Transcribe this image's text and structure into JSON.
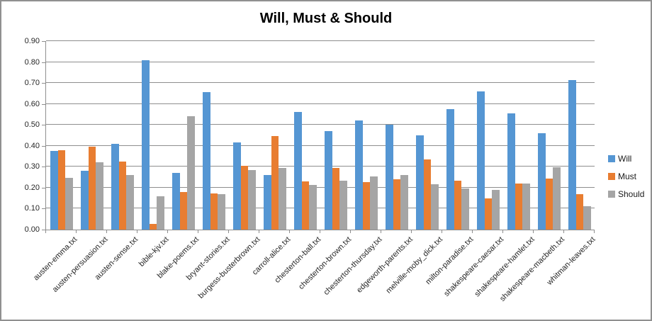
{
  "window": {
    "background": "#ffffff",
    "border_color": "#909090"
  },
  "chart_data": {
    "type": "bar",
    "title": "Will, Must & Should",
    "xlabel": "",
    "ylabel": "",
    "ylim": [
      0,
      0.9
    ],
    "ytick_step": 0.1,
    "yticks": [
      "0.00",
      "0.10",
      "0.20",
      "0.30",
      "0.40",
      "0.50",
      "0.60",
      "0.70",
      "0.80",
      "0.90"
    ],
    "grid": true,
    "gridline_color": "#8e8e8e",
    "legend_position": "right",
    "categories": [
      "austen-emma.txt",
      "austen-persuasion.txt",
      "austen-sense.txt",
      "bible-kjv.txt",
      "blake-poems.txt",
      "bryant-stories.txt",
      "burgess-busterbrown.txt",
      "carroll-alice.txt",
      "chesterton-ball.txt",
      "chesterton-brown.txt",
      "chesterton-thursday.txt",
      "edgeworth-parents.txt",
      "melville-moby_dick.txt",
      "milton-paradise.txt",
      "shakespeare-caesar.txt",
      "shakespeare-hamlet.txt",
      "shakespeare-macbeth.txt",
      "whitman-leaves.txt"
    ],
    "series": [
      {
        "name": "Will",
        "color": "#5596d3",
        "values": [
          0.375,
          0.28,
          0.41,
          0.81,
          0.27,
          0.655,
          0.415,
          0.26,
          0.56,
          0.47,
          0.52,
          0.5,
          0.45,
          0.575,
          0.66,
          0.555,
          0.46,
          0.715
        ]
      },
      {
        "name": "Must",
        "color": "#e87d31",
        "values": [
          0.38,
          0.395,
          0.325,
          0.027,
          0.18,
          0.172,
          0.305,
          0.445,
          0.23,
          0.295,
          0.225,
          0.24,
          0.335,
          0.235,
          0.15,
          0.22,
          0.245,
          0.17
        ]
      },
      {
        "name": "Should",
        "color": "#a5a5a5",
        "values": [
          0.247,
          0.32,
          0.262,
          0.158,
          0.543,
          0.168,
          0.283,
          0.295,
          0.212,
          0.235,
          0.255,
          0.26,
          0.215,
          0.196,
          0.19,
          0.22,
          0.298,
          0.112
        ]
      }
    ]
  }
}
